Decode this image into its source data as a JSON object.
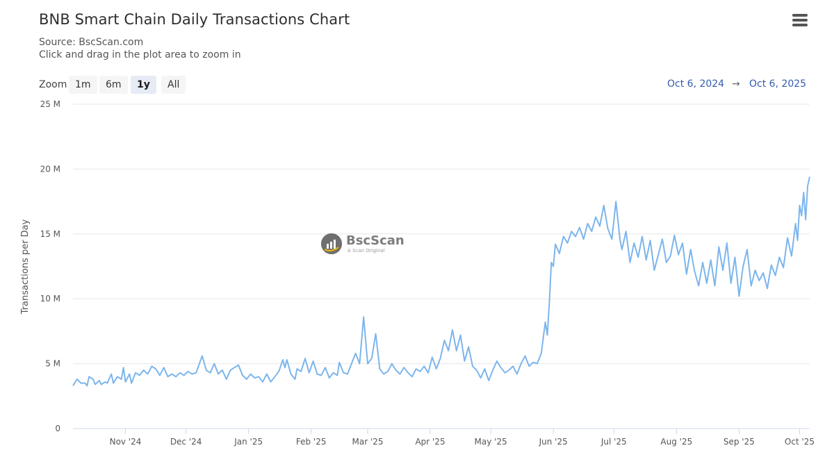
{
  "header": {
    "title": "BNB Smart Chain Daily Transactions Chart",
    "source": "Source: BscScan.com",
    "hint": "Click and drag in the plot area to zoom in"
  },
  "zoom": {
    "label": "Zoom",
    "buttons": [
      "1m",
      "6m",
      "1y",
      "All"
    ],
    "active": "1y"
  },
  "range": {
    "from": "Oct 6, 2024",
    "arrow": "→",
    "to": "Oct 6, 2025"
  },
  "watermark": {
    "name": "BscScan",
    "tagline": "A Scan Original"
  },
  "colors": {
    "line": "#7cb5ec",
    "grid": "#e6e6e6",
    "range_text": "#335cad"
  },
  "chart_data": {
    "type": "line",
    "ylabel": "Transactions per Day",
    "ylim": [
      0,
      25000000
    ],
    "yticks": [
      {
        "value": 0,
        "label": "0"
      },
      {
        "value": 5000000,
        "label": "5 M"
      },
      {
        "value": 10000000,
        "label": "10 M"
      },
      {
        "value": 15000000,
        "label": "15 M"
      },
      {
        "value": 20000000,
        "label": "20 M"
      },
      {
        "value": 25000000,
        "label": "25 M"
      }
    ],
    "xlim": [
      "2024-10-06",
      "2025-10-06"
    ],
    "xticks": [
      {
        "date": "2024-11-01",
        "label": "Nov '24"
      },
      {
        "date": "2024-12-01",
        "label": "Dec '24"
      },
      {
        "date": "2025-01-01",
        "label": "Jan '25"
      },
      {
        "date": "2025-02-01",
        "label": "Feb '25"
      },
      {
        "date": "2025-03-01",
        "label": "Mar '25"
      },
      {
        "date": "2025-04-01",
        "label": "Apr '25"
      },
      {
        "date": "2025-05-01",
        "label": "May '25"
      },
      {
        "date": "2025-06-01",
        "label": "Jun '25"
      },
      {
        "date": "2025-07-01",
        "label": "Jul '25"
      },
      {
        "date": "2025-08-01",
        "label": "Aug '25"
      },
      {
        "date": "2025-09-01",
        "label": "Sep '25"
      },
      {
        "date": "2025-10-01",
        "label": "Oct '25"
      }
    ],
    "series": [
      {
        "name": "",
        "points": [
          [
            "2024-10-06",
            3300000
          ],
          [
            "2024-10-08",
            3800000
          ],
          [
            "2024-10-10",
            3500000
          ],
          [
            "2024-10-12",
            3500000
          ],
          [
            "2024-10-13",
            3300000
          ],
          [
            "2024-10-14",
            4000000
          ],
          [
            "2024-10-16",
            3800000
          ],
          [
            "2024-10-17",
            3400000
          ],
          [
            "2024-10-19",
            3700000
          ],
          [
            "2024-10-20",
            3400000
          ],
          [
            "2024-10-22",
            3600000
          ],
          [
            "2024-10-23",
            3500000
          ],
          [
            "2024-10-25",
            4200000
          ],
          [
            "2024-10-26",
            3500000
          ],
          [
            "2024-10-28",
            4000000
          ],
          [
            "2024-10-30",
            3800000
          ],
          [
            "2024-10-31",
            4700000
          ],
          [
            "2024-11-01",
            3600000
          ],
          [
            "2024-11-03",
            4200000
          ],
          [
            "2024-11-04",
            3500000
          ],
          [
            "2024-11-06",
            4300000
          ],
          [
            "2024-11-08",
            4100000
          ],
          [
            "2024-11-10",
            4500000
          ],
          [
            "2024-11-12",
            4200000
          ],
          [
            "2024-11-14",
            4800000
          ],
          [
            "2024-11-16",
            4600000
          ],
          [
            "2024-11-18",
            4100000
          ],
          [
            "2024-11-20",
            4700000
          ],
          [
            "2024-11-22",
            4000000
          ],
          [
            "2024-11-24",
            4200000
          ],
          [
            "2024-11-26",
            4000000
          ],
          [
            "2024-11-28",
            4300000
          ],
          [
            "2024-11-30",
            4100000
          ],
          [
            "2024-12-02",
            4400000
          ],
          [
            "2024-12-04",
            4200000
          ],
          [
            "2024-12-06",
            4300000
          ],
          [
            "2024-12-09",
            5600000
          ],
          [
            "2024-12-11",
            4500000
          ],
          [
            "2024-12-13",
            4300000
          ],
          [
            "2024-12-15",
            5000000
          ],
          [
            "2024-12-17",
            4200000
          ],
          [
            "2024-12-19",
            4500000
          ],
          [
            "2024-12-21",
            3800000
          ],
          [
            "2024-12-23",
            4500000
          ],
          [
            "2024-12-25",
            4700000
          ],
          [
            "2024-12-27",
            4900000
          ],
          [
            "2024-12-29",
            4100000
          ],
          [
            "2024-12-31",
            3800000
          ],
          [
            "2025-01-02",
            4200000
          ],
          [
            "2025-01-04",
            3900000
          ],
          [
            "2025-01-06",
            4000000
          ],
          [
            "2025-01-08",
            3600000
          ],
          [
            "2025-01-10",
            4200000
          ],
          [
            "2025-01-12",
            3600000
          ],
          [
            "2025-01-14",
            4000000
          ],
          [
            "2025-01-16",
            4400000
          ],
          [
            "2025-01-18",
            5300000
          ],
          [
            "2025-01-19",
            4700000
          ],
          [
            "2025-01-20",
            5300000
          ],
          [
            "2025-01-22",
            4200000
          ],
          [
            "2025-01-24",
            3800000
          ],
          [
            "2025-01-25",
            4600000
          ],
          [
            "2025-01-27",
            4400000
          ],
          [
            "2025-01-29",
            5400000
          ],
          [
            "2025-01-31",
            4300000
          ],
          [
            "2025-02-02",
            5200000
          ],
          [
            "2025-02-04",
            4200000
          ],
          [
            "2025-02-06",
            4100000
          ],
          [
            "2025-02-08",
            4700000
          ],
          [
            "2025-02-10",
            3900000
          ],
          [
            "2025-02-12",
            4300000
          ],
          [
            "2025-02-14",
            4100000
          ],
          [
            "2025-02-15",
            5100000
          ],
          [
            "2025-02-17",
            4300000
          ],
          [
            "2025-02-19",
            4200000
          ],
          [
            "2025-02-21",
            5000000
          ],
          [
            "2025-02-23",
            5800000
          ],
          [
            "2025-02-25",
            5000000
          ],
          [
            "2025-02-27",
            8600000
          ],
          [
            "2025-03-01",
            5000000
          ],
          [
            "2025-03-03",
            5400000
          ],
          [
            "2025-03-05",
            7300000
          ],
          [
            "2025-03-07",
            4600000
          ],
          [
            "2025-03-09",
            4200000
          ],
          [
            "2025-03-11",
            4400000
          ],
          [
            "2025-03-13",
            5000000
          ],
          [
            "2025-03-15",
            4500000
          ],
          [
            "2025-03-17",
            4200000
          ],
          [
            "2025-03-19",
            4700000
          ],
          [
            "2025-03-21",
            4300000
          ],
          [
            "2025-03-23",
            4000000
          ],
          [
            "2025-03-25",
            4600000
          ],
          [
            "2025-03-27",
            4400000
          ],
          [
            "2025-03-29",
            4800000
          ],
          [
            "2025-03-31",
            4300000
          ],
          [
            "2025-04-02",
            5500000
          ],
          [
            "2025-04-04",
            4600000
          ],
          [
            "2025-04-06",
            5400000
          ],
          [
            "2025-04-08",
            6800000
          ],
          [
            "2025-04-10",
            6000000
          ],
          [
            "2025-04-12",
            7600000
          ],
          [
            "2025-04-14",
            6000000
          ],
          [
            "2025-04-16",
            7200000
          ],
          [
            "2025-04-18",
            5200000
          ],
          [
            "2025-04-20",
            6300000
          ],
          [
            "2025-04-22",
            4800000
          ],
          [
            "2025-04-24",
            4500000
          ],
          [
            "2025-04-26",
            3900000
          ],
          [
            "2025-04-28",
            4600000
          ],
          [
            "2025-04-30",
            3700000
          ],
          [
            "2025-05-02",
            4500000
          ],
          [
            "2025-05-04",
            5200000
          ],
          [
            "2025-05-06",
            4700000
          ],
          [
            "2025-05-08",
            4300000
          ],
          [
            "2025-05-10",
            4500000
          ],
          [
            "2025-05-12",
            4800000
          ],
          [
            "2025-05-14",
            4200000
          ],
          [
            "2025-05-16",
            5000000
          ],
          [
            "2025-05-18",
            5600000
          ],
          [
            "2025-05-20",
            4800000
          ],
          [
            "2025-05-22",
            5100000
          ],
          [
            "2025-05-24",
            5000000
          ],
          [
            "2025-05-26",
            5800000
          ],
          [
            "2025-05-28",
            8200000
          ],
          [
            "2025-05-29",
            7200000
          ],
          [
            "2025-05-30",
            9700000
          ],
          [
            "2025-05-31",
            12800000
          ],
          [
            "2025-06-01",
            12500000
          ],
          [
            "2025-06-02",
            14200000
          ],
          [
            "2025-06-04",
            13500000
          ],
          [
            "2025-06-06",
            14800000
          ],
          [
            "2025-06-08",
            14300000
          ],
          [
            "2025-06-10",
            15200000
          ],
          [
            "2025-06-12",
            14800000
          ],
          [
            "2025-06-14",
            15500000
          ],
          [
            "2025-06-16",
            14600000
          ],
          [
            "2025-06-18",
            15800000
          ],
          [
            "2025-06-20",
            15200000
          ],
          [
            "2025-06-22",
            16300000
          ],
          [
            "2025-06-24",
            15600000
          ],
          [
            "2025-06-26",
            17200000
          ],
          [
            "2025-06-28",
            15400000
          ],
          [
            "2025-06-30",
            14600000
          ],
          [
            "2025-07-02",
            17500000
          ],
          [
            "2025-07-04",
            14600000
          ],
          [
            "2025-07-05",
            13800000
          ],
          [
            "2025-07-07",
            15200000
          ],
          [
            "2025-07-09",
            12800000
          ],
          [
            "2025-07-11",
            14300000
          ],
          [
            "2025-07-13",
            13200000
          ],
          [
            "2025-07-15",
            14800000
          ],
          [
            "2025-07-17",
            13000000
          ],
          [
            "2025-07-19",
            14500000
          ],
          [
            "2025-07-21",
            12200000
          ],
          [
            "2025-07-23",
            13400000
          ],
          [
            "2025-07-25",
            14600000
          ],
          [
            "2025-07-27",
            12800000
          ],
          [
            "2025-07-29",
            13300000
          ],
          [
            "2025-07-31",
            14900000
          ],
          [
            "2025-08-02",
            13400000
          ],
          [
            "2025-08-04",
            14300000
          ],
          [
            "2025-08-06",
            11900000
          ],
          [
            "2025-08-08",
            13800000
          ],
          [
            "2025-08-10",
            12100000
          ],
          [
            "2025-08-12",
            11000000
          ],
          [
            "2025-08-14",
            12800000
          ],
          [
            "2025-08-16",
            11200000
          ],
          [
            "2025-08-18",
            13000000
          ],
          [
            "2025-08-20",
            11000000
          ],
          [
            "2025-08-22",
            14000000
          ],
          [
            "2025-08-24",
            12200000
          ],
          [
            "2025-08-26",
            14300000
          ],
          [
            "2025-08-28",
            11200000
          ],
          [
            "2025-08-30",
            13200000
          ],
          [
            "2025-09-01",
            10200000
          ],
          [
            "2025-09-03",
            12500000
          ],
          [
            "2025-09-05",
            13800000
          ],
          [
            "2025-09-07",
            11000000
          ],
          [
            "2025-09-09",
            12200000
          ],
          [
            "2025-09-11",
            11400000
          ],
          [
            "2025-09-13",
            12000000
          ],
          [
            "2025-09-15",
            10800000
          ],
          [
            "2025-09-17",
            12600000
          ],
          [
            "2025-09-19",
            11800000
          ],
          [
            "2025-09-21",
            13200000
          ],
          [
            "2025-09-23",
            12400000
          ],
          [
            "2025-09-25",
            14700000
          ],
          [
            "2025-09-27",
            13300000
          ],
          [
            "2025-09-29",
            15800000
          ],
          [
            "2025-09-30",
            14500000
          ],
          [
            "2025-10-01",
            17200000
          ],
          [
            "2025-10-02",
            16400000
          ],
          [
            "2025-10-03",
            18200000
          ],
          [
            "2025-10-04",
            16100000
          ],
          [
            "2025-10-05",
            18700000
          ],
          [
            "2025-10-06",
            19400000
          ]
        ]
      }
    ]
  }
}
